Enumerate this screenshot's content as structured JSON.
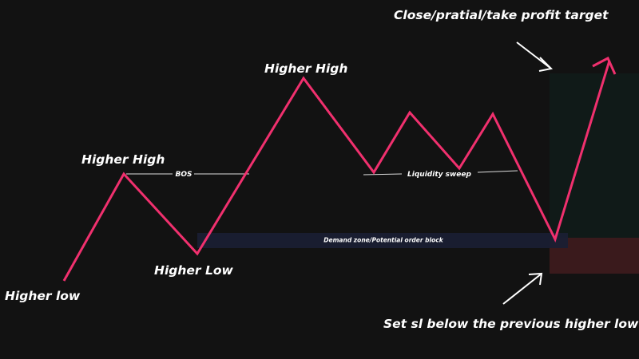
{
  "labels": {
    "higher_low_1": "Higher low",
    "higher_high_1": "Higher High",
    "higher_low_2": "Higher Low",
    "higher_high_2": "Higher High",
    "bos": "BOS",
    "liquidity_sweep": "Liquidity sweep",
    "demand_zone": "Demand zone/Potential order block",
    "take_profit": "Close/pratial/take profit target",
    "stop_loss": "Set sl below the previous higher low"
  },
  "colors": {
    "background": "#121212",
    "price_line": "#f0306e",
    "demand_zone": "#1a1f33",
    "profit_zone": "#101a18",
    "loss_zone": "#3a1a1c",
    "text": "#ffffff"
  }
}
